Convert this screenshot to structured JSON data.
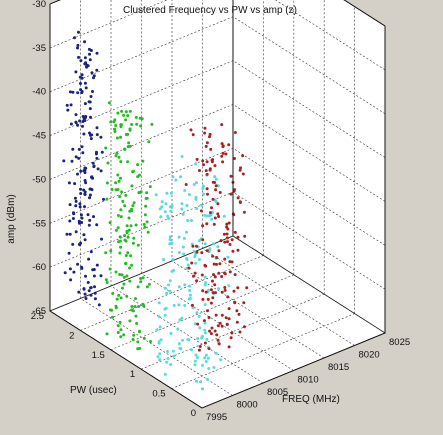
{
  "chart_data": {
    "type": "scatter",
    "dims": 3,
    "title": "Clustered  Frequency vs PW vs amp (z)",
    "xlabel": "FREQ (MHz)",
    "ylabel": "PW (usec)",
    "zlabel": "amp (dBm)",
    "xlim": [
      7995,
      8025
    ],
    "ylim": [
      0,
      2.5
    ],
    "zlim": [
      -65,
      -30
    ],
    "x_ticks": [
      "7995",
      "8000",
      "8005",
      "8010",
      "8015",
      "8020",
      "8025"
    ],
    "y_ticks": [
      "0",
      "0.5",
      "1",
      "1.5",
      "2",
      "2.5"
    ],
    "z_ticks": [
      "-65",
      "-60",
      "-55",
      "-50",
      "-45",
      "-40",
      "-35",
      "-30"
    ],
    "grid": true,
    "series": [
      {
        "color": "#1a237e",
        "x": [
          7996,
          7998
        ],
        "y": [
          1.9,
          2.4
        ],
        "z": [
          -63,
          -33
        ]
      },
      {
        "color": "#22bb22",
        "x": [
          7996.5,
          7999
        ],
        "y": [
          1.2,
          1.8
        ],
        "z": [
          -65,
          -38
        ]
      },
      {
        "color": "#55dddd",
        "x": [
          7996,
          8002
        ],
        "y": [
          0.2,
          1.0
        ],
        "z": [
          -65,
          -42
        ]
      },
      {
        "color": "#aa2222",
        "x": [
          7996,
          8003
        ],
        "y": [
          0.0,
          0.4
        ],
        "z": [
          -60,
          -35
        ]
      }
    ]
  }
}
